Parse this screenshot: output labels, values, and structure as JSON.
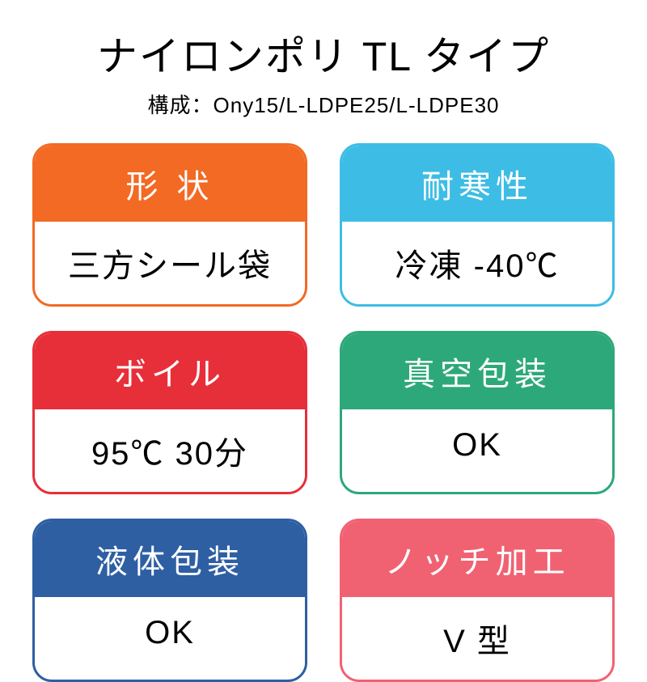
{
  "title": "ナイロンポリ TL タイプ",
  "subtitle": "構成：Ony15/L-LDPE25/L-LDPE30",
  "cards": [
    {
      "header": "形 状",
      "body": "三方シール袋",
      "color": "#f26a24",
      "border": "#f26a24"
    },
    {
      "header": "耐寒性",
      "body": "冷凍 -40℃",
      "color": "#3dbde5",
      "border": "#3dbde5"
    },
    {
      "header": "ボイル",
      "body": "95℃ 30分",
      "color": "#e72f3a",
      "border": "#e72f3a"
    },
    {
      "header": "真空包装",
      "body": "OK",
      "color": "#2da87a",
      "border": "#2da87a"
    },
    {
      "header": "液体包装",
      "body": "OK",
      "color": "#2e5fa3",
      "border": "#2e5fa3"
    },
    {
      "header": "ノッチ加工",
      "body": "V 型",
      "color": "#f06272",
      "border": "#f06272"
    }
  ]
}
